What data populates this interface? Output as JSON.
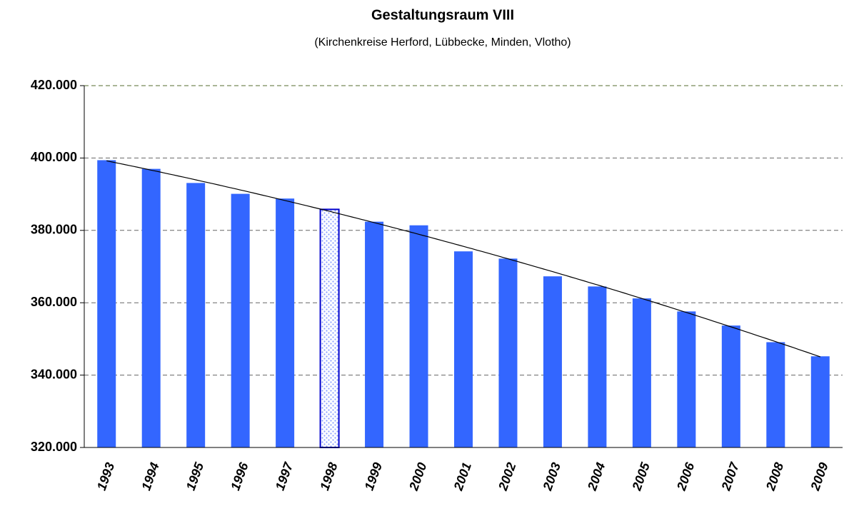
{
  "chart_data": {
    "type": "bar",
    "title": "Gestaltungsraum VIII",
    "subtitle": "(Kirchenkreise Herford, Lübbecke, Minden, Vlotho)",
    "categories": [
      "1993",
      "1994",
      "1995",
      "1996",
      "1997",
      "1998",
      "1999",
      "2000",
      "2001",
      "2002",
      "2003",
      "2004",
      "2005",
      "2006",
      "2007",
      "2008",
      "2009"
    ],
    "values": [
      399400,
      397000,
      393100,
      390100,
      388800,
      385800,
      382400,
      381400,
      374200,
      372200,
      367300,
      364500,
      361200,
      357600,
      353700,
      349100,
      345200
    ],
    "color": "#3366ff",
    "highlight": "1998",
    "trendline": true,
    "ylim": [
      320000,
      420000
    ],
    "yticks": [
      {
        "value": 320000,
        "label": "320.000"
      },
      {
        "value": 340000,
        "label": "340.000"
      },
      {
        "value": 360000,
        "label": "360.000"
      },
      {
        "value": 380000,
        "label": "380.000"
      },
      {
        "value": 400000,
        "label": "400.000"
      },
      {
        "value": 420000,
        "label": "420.000"
      }
    ],
    "grid": true
  }
}
